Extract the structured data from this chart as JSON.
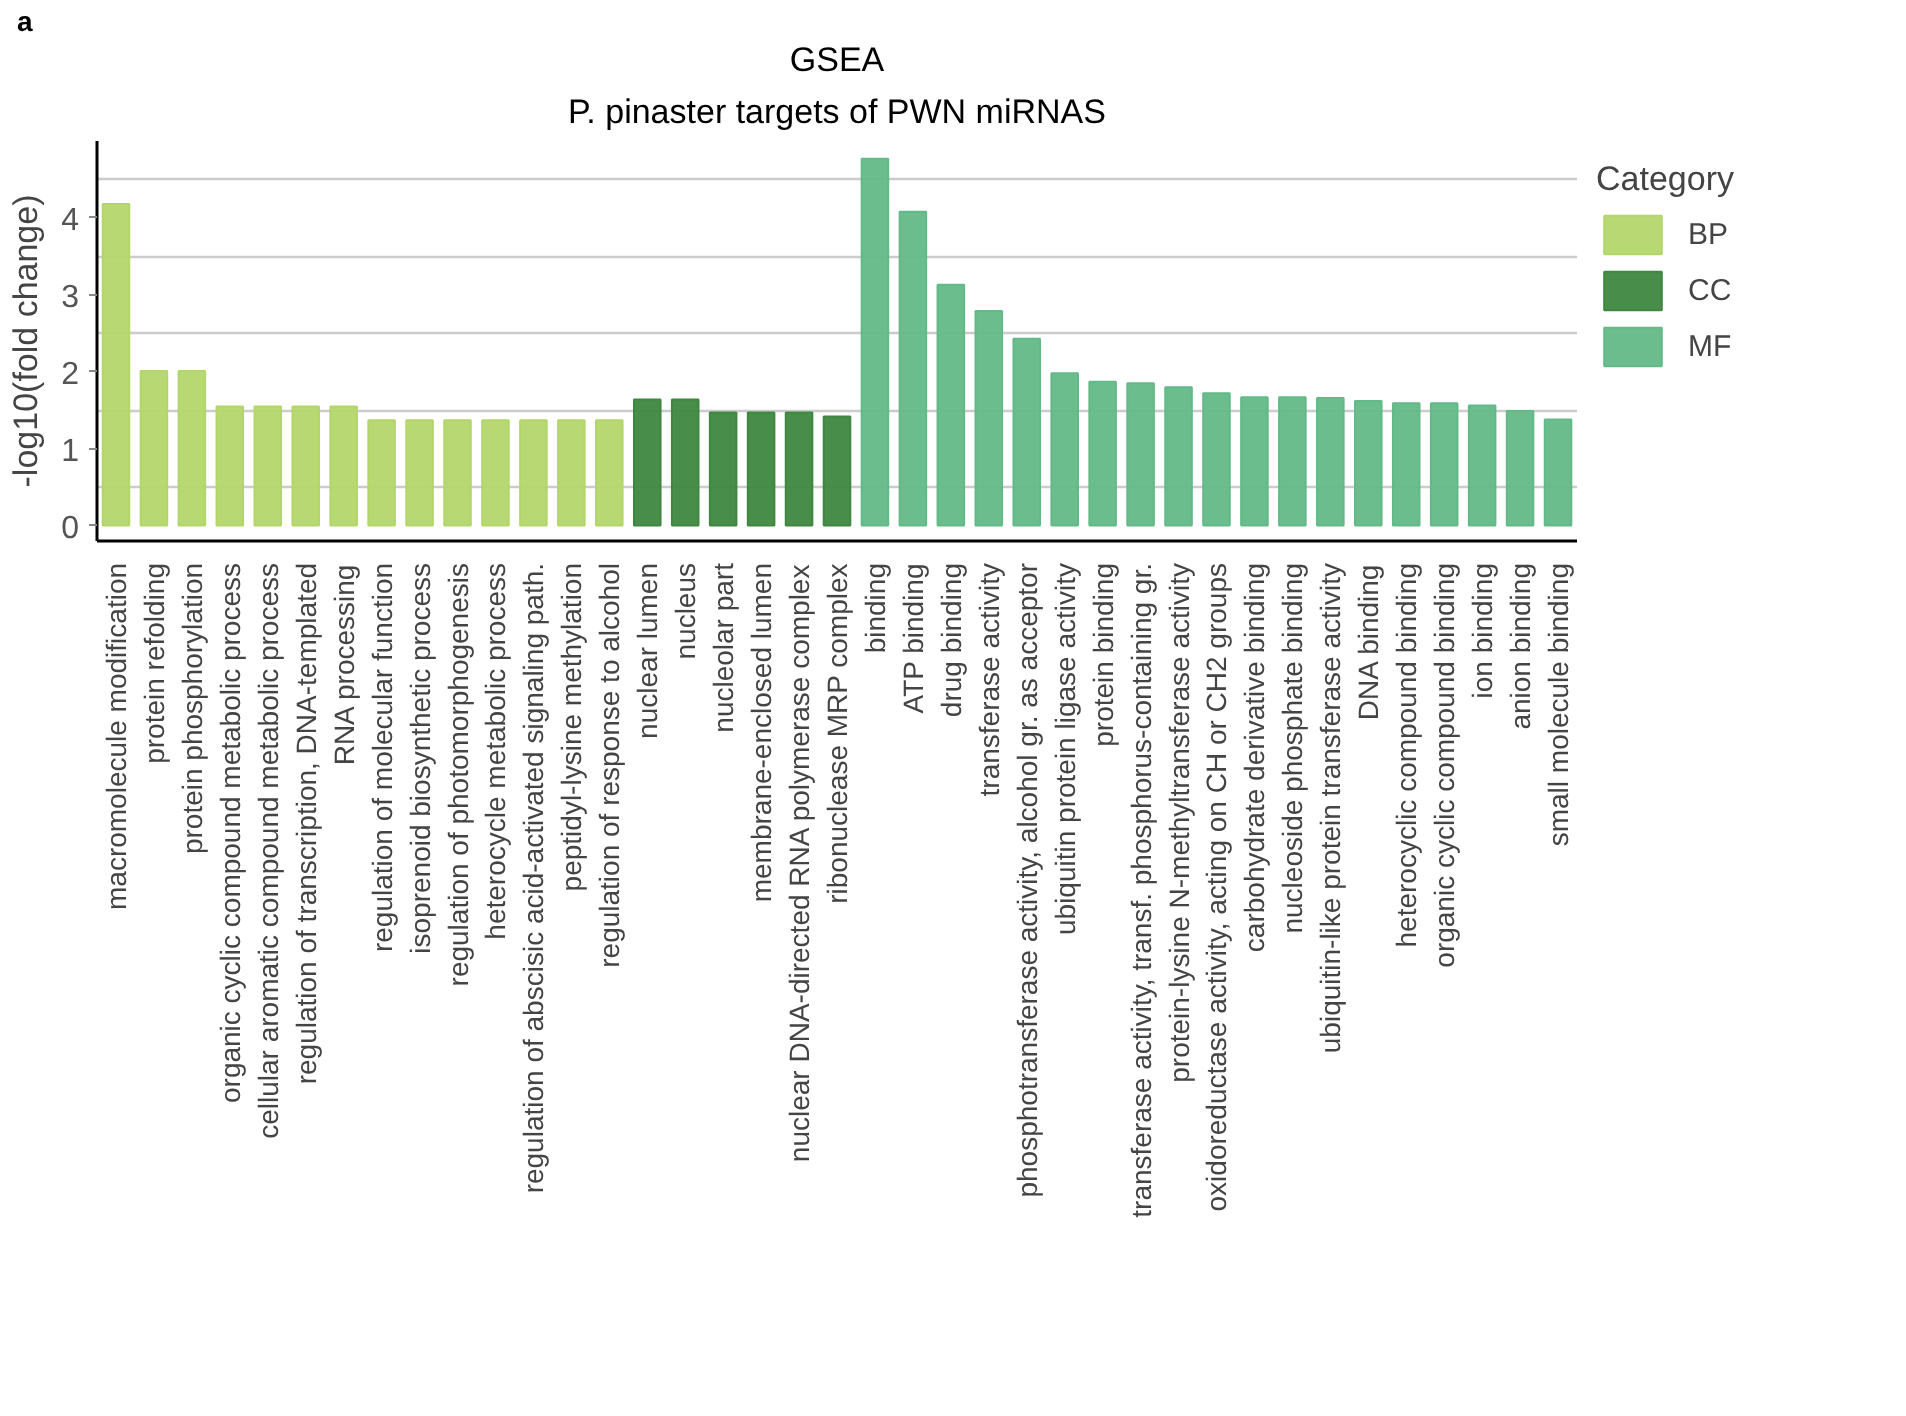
{
  "chart_data": {
    "type": "bar",
    "title": "GSEA",
    "subtitle": "P. pinaster targets of PWN miRNAS",
    "ylabel": "-log10(fold change)",
    "legend_title": "Category",
    "legend": "right",
    "grid": "y",
    "annotations": [
      "a"
    ],
    "categories": [
      "macromolecule modification",
      "protein refolding",
      "protein phosphorylation",
      "organic cyclic compound metabolic process",
      "cellular aromatic compound metabolic process",
      "regulation of transcription, DNA-templated",
      "RNA processing",
      "regulation of molecular function",
      "isoprenoid biosynthetic process",
      "regulation of photomorphogenesis",
      "heterocycle metabolic process",
      "regulation of abscisic acid-activated signaling path.",
      "peptidyl-lysine methylation",
      "regulation of response to alcohol",
      "nuclear lumen",
      "nucleus",
      "nucleolar part",
      "membrane-enclosed lumen",
      "nuclear DNA-directed RNA polymerase complex",
      "ribonuclease MRP complex",
      "binding",
      "ATP binding",
      "drug binding",
      "transferase activity",
      "phosphotransferase activity, alcohol gr. as acceptor",
      "ubiquitin protein ligase activity",
      "protein binding",
      "transferase activity, transf. phosphorus-containing gr.",
      "protein-lysine N-methyltransferase activity",
      "oxidoreductase activity, acting on CH or CH2 groups",
      "carbohydrate derivative binding",
      "nucleoside phosphate binding",
      "ubiquitin-like protein transferase activity",
      "DNA binding",
      "heterocyclic compound binding",
      "organic cyclic compound binding",
      "ion binding",
      "anion binding",
      "small molecule binding"
    ],
    "series": [
      {
        "name": "BP",
        "color": "#b3d66a",
        "values": [
          4.18,
          2.01,
          2.01,
          1.55,
          1.55,
          1.55,
          1.55,
          1.37,
          1.37,
          1.37,
          1.37,
          1.37,
          1.37,
          1.37,
          null,
          null,
          null,
          null,
          null,
          null,
          null,
          null,
          null,
          null,
          null,
          null,
          null,
          null,
          null,
          null,
          null,
          null,
          null,
          null,
          null,
          null,
          null,
          null,
          null
        ]
      },
      {
        "name": "CC",
        "color": "#3f8740",
        "values": [
          null,
          null,
          null,
          null,
          null,
          null,
          null,
          null,
          null,
          null,
          null,
          null,
          null,
          null,
          1.64,
          1.64,
          1.47,
          1.47,
          1.47,
          1.42,
          null,
          null,
          null,
          null,
          null,
          null,
          null,
          null,
          null,
          null,
          null,
          null,
          null,
          null,
          null,
          null,
          null,
          null,
          null
        ]
      },
      {
        "name": "MF",
        "color": "#63b987",
        "values": [
          null,
          null,
          null,
          null,
          null,
          null,
          null,
          null,
          null,
          null,
          null,
          null,
          null,
          null,
          null,
          null,
          null,
          null,
          null,
          null,
          4.77,
          4.08,
          3.13,
          2.79,
          2.43,
          1.98,
          1.87,
          1.85,
          1.8,
          1.72,
          1.67,
          1.67,
          1.66,
          1.62,
          1.59,
          1.59,
          1.56,
          1.49,
          1.38
        ]
      }
    ],
    "ylim": [
      -0.2,
      5.0
    ],
    "yticks": [
      0,
      {
        "value": 0.5,
        "label": null
      },
      1,
      {
        "value": 1.5,
        "label": null
      },
      2,
      {
        "value": 2.5,
        "label": null
      },
      3,
      {
        "value": 3.5,
        "label": null
      },
      4,
      {
        "value": 4.5,
        "label": null
      }
    ]
  }
}
